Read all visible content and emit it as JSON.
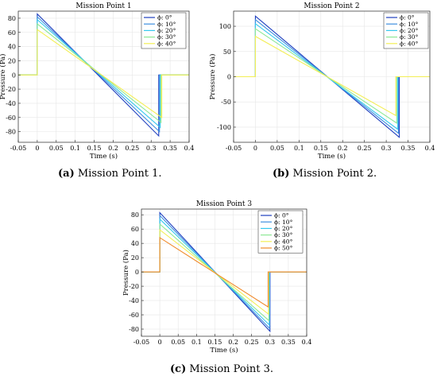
{
  "figure": {
    "captions": [
      {
        "tag": "(a)",
        "text": " Mission Point 1."
      },
      {
        "tag": "(b)",
        "text": " Mission Point 2."
      },
      {
        "tag": "(c)",
        "text": " Mission Point 3."
      }
    ]
  },
  "chart_data": [
    {
      "type": "line",
      "title": "Mission Point 1",
      "xlabel": "Time (s)",
      "ylabel": "Pressure (Pa)",
      "xlim": [
        -0.05,
        0.4
      ],
      "ylim": [
        -95,
        90
      ],
      "xticks": [
        "-0.05",
        "0",
        "0.05",
        "0.1",
        "0.15",
        "0.2",
        "0.25",
        "0.3",
        "0.35",
        "0.4"
      ],
      "xtick_values": [
        -0.05,
        0,
        0.05,
        0.1,
        0.15,
        0.2,
        0.25,
        0.3,
        0.35,
        0.4
      ],
      "yticks": [
        "80",
        "60",
        "40",
        "20",
        "0",
        "-20",
        "-40",
        "-60",
        "-80"
      ],
      "ytick_values": [
        80,
        60,
        40,
        20,
        0,
        -20,
        -40,
        -60,
        -80
      ],
      "grid": true,
      "legend_position": "top-right",
      "series": [
        {
          "name": "ϕ: 0°",
          "color": "#1f3fbf",
          "x": [
            -0.05,
            0,
            0,
            0.32,
            0.32,
            0.4
          ],
          "y": [
            0,
            0,
            86,
            -86,
            0,
            0
          ]
        },
        {
          "name": "ϕ: 10°",
          "color": "#3d8fe0",
          "x": [
            -0.05,
            0,
            0,
            0.322,
            0.322,
            0.4
          ],
          "y": [
            0,
            0,
            82,
            -80,
            0,
            0
          ]
        },
        {
          "name": "ϕ: 20°",
          "color": "#36c8ee",
          "x": [
            -0.05,
            0,
            0,
            0.324,
            0.324,
            0.4
          ],
          "y": [
            0,
            0,
            78,
            -74,
            0,
            0
          ]
        },
        {
          "name": "ϕ: 30°",
          "color": "#8ee896",
          "x": [
            -0.05,
            0,
            0,
            0.326,
            0.326,
            0.4
          ],
          "y": [
            0,
            0,
            72,
            -67,
            0,
            0
          ]
        },
        {
          "name": "ϕ: 40°",
          "color": "#f3ee55",
          "x": [
            -0.05,
            0,
            0,
            0.328,
            0.328,
            0.4
          ],
          "y": [
            0,
            0,
            64,
            -60,
            0,
            0
          ]
        }
      ]
    },
    {
      "type": "line",
      "title": "Mission Point 2",
      "xlabel": "Time (s)",
      "ylabel": "Pressure (Pa)",
      "xlim": [
        -0.05,
        0.4
      ],
      "ylim": [
        -130,
        130
      ],
      "xticks": [
        "-0.05",
        "0",
        "0.05",
        "0.1",
        "0.15",
        "0.2",
        "0.25",
        "0.3",
        "0.35",
        "0.4"
      ],
      "xtick_values": [
        -0.05,
        0,
        0.05,
        0.1,
        0.15,
        0.2,
        0.25,
        0.3,
        0.35,
        0.4
      ],
      "yticks": [
        "100",
        "50",
        "0",
        "-50",
        "-100"
      ],
      "ytick_values": [
        100,
        50,
        0,
        -50,
        -100
      ],
      "grid": true,
      "legend_position": "top-right",
      "series": [
        {
          "name": "ϕ: 0°",
          "color": "#1f3fbf",
          "x": [
            -0.05,
            0,
            0,
            0.33,
            0.33,
            0.4
          ],
          "y": [
            0,
            0,
            120,
            -120,
            0,
            0
          ]
        },
        {
          "name": "ϕ: 10°",
          "color": "#3d8fe0",
          "x": [
            -0.05,
            0,
            0,
            0.328,
            0.328,
            0.4
          ],
          "y": [
            0,
            0,
            113,
            -112,
            0,
            0
          ]
        },
        {
          "name": "ϕ: 20°",
          "color": "#36c8ee",
          "x": [
            -0.05,
            0,
            0,
            0.326,
            0.326,
            0.4
          ],
          "y": [
            0,
            0,
            105,
            -104,
            0,
            0
          ]
        },
        {
          "name": "ϕ: 30°",
          "color": "#8ee896",
          "x": [
            -0.05,
            0,
            0,
            0.324,
            0.324,
            0.4
          ],
          "y": [
            0,
            0,
            95,
            -92,
            0,
            0
          ]
        },
        {
          "name": "ϕ: 40°",
          "color": "#f3ee55",
          "x": [
            -0.05,
            0,
            0,
            0.322,
            0.322,
            0.4
          ],
          "y": [
            0,
            0,
            80,
            -77,
            0,
            0
          ]
        }
      ]
    },
    {
      "type": "line",
      "title": "Mission Point 3",
      "xlabel": "Time (s)",
      "ylabel": "Pressure (Pa)",
      "xlim": [
        -0.05,
        0.4
      ],
      "ylim": [
        -90,
        88
      ],
      "xticks": [
        "-0.05",
        "0",
        "0.05",
        "0.1",
        "0.15",
        "0.2",
        "0.25",
        "0.3",
        "0.35",
        "0.4"
      ],
      "xtick_values": [
        -0.05,
        0,
        0.05,
        0.1,
        0.15,
        0.2,
        0.25,
        0.3,
        0.35,
        0.4
      ],
      "yticks": [
        "80",
        "60",
        "40",
        "20",
        "0",
        "-20",
        "-40",
        "-60",
        "-80"
      ],
      "ytick_values": [
        80,
        60,
        40,
        20,
        0,
        -20,
        -40,
        -60,
        -80
      ],
      "grid": true,
      "legend_position": "top-right",
      "series": [
        {
          "name": "ϕ: 0°",
          "color": "#1f3fbf",
          "x": [
            -0.05,
            0,
            0,
            0.3,
            0.3,
            0.4
          ],
          "y": [
            0,
            0,
            83,
            -83,
            0,
            0
          ]
        },
        {
          "name": "ϕ: 10°",
          "color": "#3d8fe0",
          "x": [
            -0.05,
            0,
            0,
            0.299,
            0.299,
            0.4
          ],
          "y": [
            0,
            0,
            79,
            -79,
            0,
            0
          ]
        },
        {
          "name": "ϕ: 20°",
          "color": "#36c8ee",
          "x": [
            -0.05,
            0,
            0,
            0.298,
            0.298,
            0.4
          ],
          "y": [
            0,
            0,
            74,
            -74,
            0,
            0
          ]
        },
        {
          "name": "ϕ: 30°",
          "color": "#8ee896",
          "x": [
            -0.05,
            0,
            0,
            0.297,
            0.297,
            0.4
          ],
          "y": [
            0,
            0,
            67,
            -68,
            0,
            0
          ]
        },
        {
          "name": "ϕ: 40°",
          "color": "#f3ee55",
          "x": [
            -0.05,
            0,
            0,
            0.296,
            0.296,
            0.4
          ],
          "y": [
            0,
            0,
            59,
            -59,
            0,
            0
          ]
        },
        {
          "name": "ϕ: 50°",
          "color": "#f08a2a",
          "x": [
            -0.05,
            0,
            0,
            0.295,
            0.295,
            0.4
          ],
          "y": [
            0,
            0,
            48,
            -49,
            0,
            0
          ]
        }
      ]
    }
  ]
}
